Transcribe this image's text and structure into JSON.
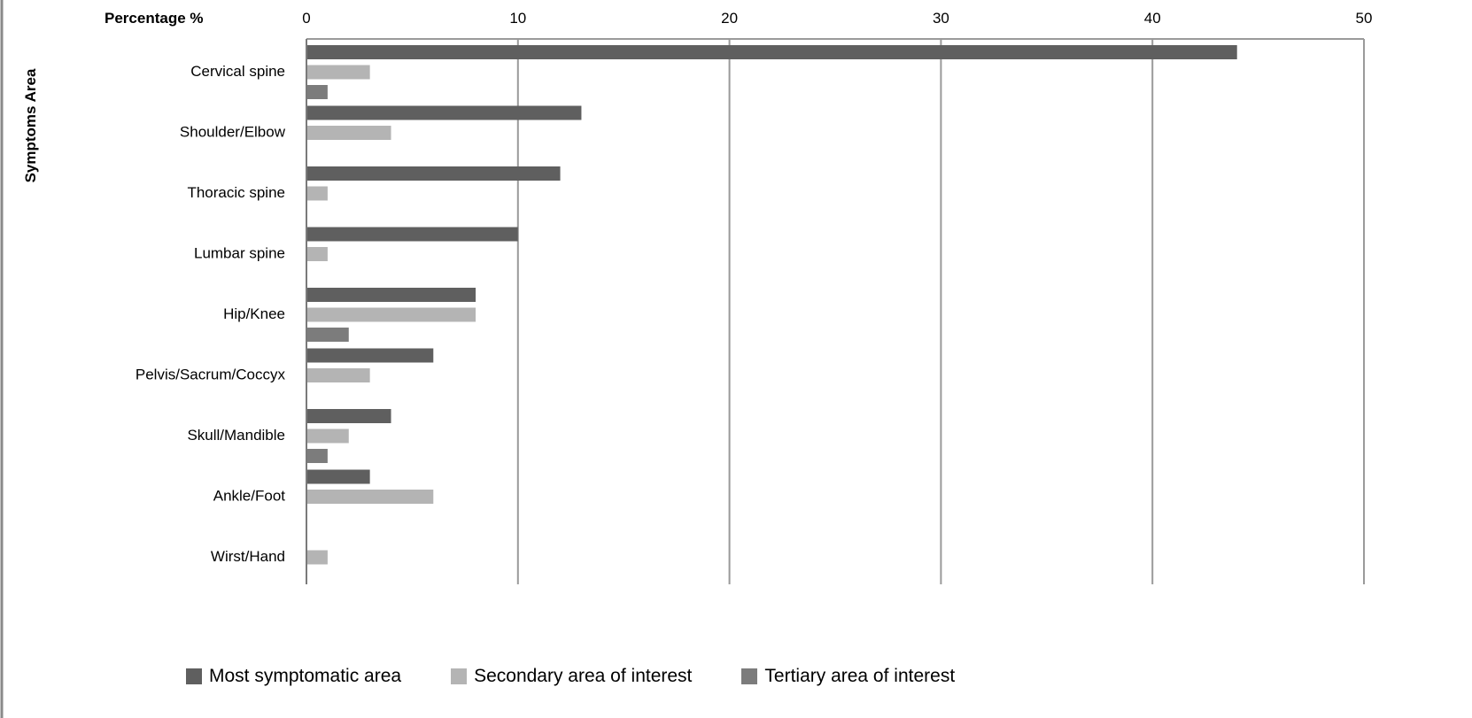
{
  "chart_data": {
    "type": "bar",
    "orientation": "horizontal",
    "xlabel": "Percentage %",
    "ylabel": "Symptoms Area",
    "xlim": [
      0,
      50
    ],
    "xticks": [
      0,
      10,
      20,
      30,
      40,
      50
    ],
    "grid": true,
    "legend_position": "bottom",
    "categories": [
      "Cervical spine",
      "Shoulder/Elbow",
      "Thoracic spine",
      "Lumbar  spine",
      "Hip/Knee",
      "Pelvis/Sacrum/Coccyx",
      "Skull/Mandible",
      "Ankle/Foot",
      "Wirst/Hand"
    ],
    "series": [
      {
        "name": "Most symptomatic  area",
        "color": "#5f5f5f",
        "values": [
          44,
          13,
          12,
          10,
          8,
          6,
          4,
          3,
          0
        ]
      },
      {
        "name": "Secondary  area of  interest",
        "color": "#b4b4b4",
        "values": [
          3,
          4,
          1,
          1,
          8,
          3,
          2,
          6,
          1
        ]
      },
      {
        "name": "Tertiary  area of  interest",
        "color": "#7c7c7c",
        "values": [
          1,
          0,
          0,
          0,
          2,
          0,
          1,
          0,
          0
        ]
      }
    ]
  }
}
